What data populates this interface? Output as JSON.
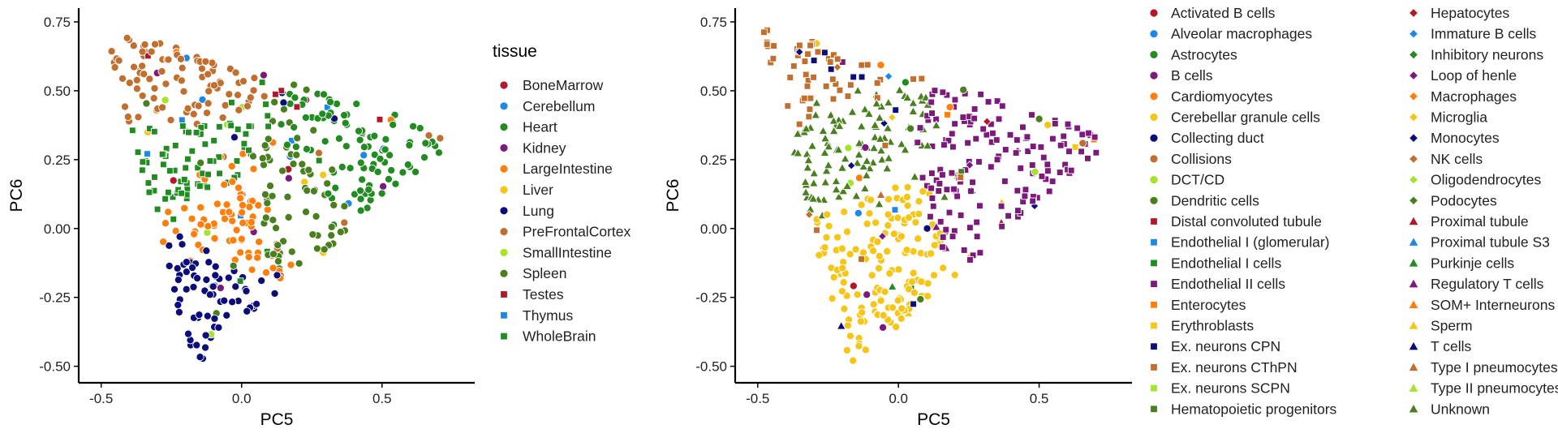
{
  "chart_data": [
    {
      "type": "scatter",
      "title": "",
      "xlabel": "PC5",
      "ylabel": "PC6",
      "xlim": [
        -0.58,
        0.83
      ],
      "ylim": [
        -0.56,
        0.8
      ],
      "x_ticks": [
        "-0.5",
        "0.0",
        "0.5"
      ],
      "x_tick_values": [
        -0.5,
        0.0,
        0.5
      ],
      "y_ticks": [
        "0.75",
        "0.50",
        "0.25",
        "0.00",
        "-0.25",
        "-0.50"
      ],
      "y_tick_values": [
        0.75,
        0.5,
        0.25,
        0.0,
        -0.25,
        -0.5
      ],
      "grid": false,
      "legend": {
        "title": "tissue",
        "placement": "right",
        "entries": [
          {
            "name": "BoneMarrow",
            "color": "#b2182b",
            "shape": "circle"
          },
          {
            "name": "Cerebellum",
            "color": "#1e88e5",
            "shape": "circle"
          },
          {
            "name": "Heart",
            "color": "#228b22",
            "shape": "circle"
          },
          {
            "name": "Kidney",
            "color": "#7b1a7b",
            "shape": "circle"
          },
          {
            "name": "LargeIntestine",
            "color": "#ff7f0e",
            "shape": "circle"
          },
          {
            "name": "Liver",
            "color": "#f5c518",
            "shape": "circle"
          },
          {
            "name": "Lung",
            "color": "#0d0d7a",
            "shape": "circle"
          },
          {
            "name": "PreFrontalCortex",
            "color": "#c06f2e",
            "shape": "circle"
          },
          {
            "name": "SmallIntestine",
            "color": "#a6e22e",
            "shape": "circle"
          },
          {
            "name": "Spleen",
            "color": "#4a7f1f",
            "shape": "circle"
          },
          {
            "name": "Testes",
            "color": "#b2182b",
            "shape": "square"
          },
          {
            "name": "Thymus",
            "color": "#1e88e5",
            "shape": "square"
          },
          {
            "name": "WholeBrain",
            "color": "#228b22",
            "shape": "square"
          }
        ]
      },
      "clusters": [
        {
          "label": "PreFrontalCortex",
          "centroid": [
            -0.35,
            0.5
          ]
        },
        {
          "label": "WholeBrain",
          "centroid": [
            -0.3,
            0.25
          ]
        },
        {
          "label": "LargeIntestine",
          "centroid": [
            -0.05,
            0.0
          ]
        },
        {
          "label": "Heart",
          "centroid": [
            0.45,
            0.18
          ]
        },
        {
          "label": "Lung",
          "centroid": [
            -0.1,
            -0.2
          ]
        },
        {
          "label": "Spleen",
          "centroid": [
            0.2,
            0.05
          ]
        }
      ],
      "outliers": [
        [
          -0.01,
          0.43
        ],
        [
          -0.14,
          0.55
        ],
        [
          -0.12,
          0.56
        ]
      ]
    },
    {
      "type": "scatter",
      "title": "",
      "xlabel": "PC5",
      "ylabel": "PC6",
      "xlim": [
        -0.58,
        0.83
      ],
      "ylim": [
        -0.56,
        0.8
      ],
      "x_ticks": [
        "-0.5",
        "0.0",
        "0.5"
      ],
      "x_tick_values": [
        -0.5,
        0.0,
        0.5
      ],
      "y_ticks": [
        "0.75",
        "0.50",
        "0.25",
        "0.00",
        "-0.25",
        "-0.50"
      ],
      "y_tick_values": [
        0.75,
        0.5,
        0.25,
        0.0,
        -0.25,
        -0.5
      ],
      "grid": false,
      "legend": {
        "title": "",
        "placement": "right",
        "columns": [
          [
            {
              "name": "Activated B cells",
              "color": "#b2182b",
              "shape": "circle"
            },
            {
              "name": "Alveolar macrophages",
              "color": "#1e88e5",
              "shape": "circle"
            },
            {
              "name": "Astrocytes",
              "color": "#228b22",
              "shape": "circle"
            },
            {
              "name": "B cells",
              "color": "#7b1a7b",
              "shape": "circle"
            },
            {
              "name": "Cardiomyocytes",
              "color": "#ff7f0e",
              "shape": "circle"
            },
            {
              "name": "Cerebellar granule cells",
              "color": "#f5c518",
              "shape": "circle"
            },
            {
              "name": "Collecting duct",
              "color": "#0d0d7a",
              "shape": "circle"
            },
            {
              "name": "Collisions",
              "color": "#c06f2e",
              "shape": "circle"
            },
            {
              "name": "DCT/CD",
              "color": "#a6e22e",
              "shape": "circle"
            },
            {
              "name": "Dendritic cells",
              "color": "#4a7f1f",
              "shape": "circle"
            },
            {
              "name": "Distal convoluted tubule",
              "color": "#b2182b",
              "shape": "square"
            },
            {
              "name": "Endothelial I (glomerular)",
              "color": "#1e88e5",
              "shape": "square"
            },
            {
              "name": "Endothelial I cells",
              "color": "#228b22",
              "shape": "square"
            },
            {
              "name": "Endothelial II cells",
              "color": "#7b1a7b",
              "shape": "square"
            },
            {
              "name": "Enterocytes",
              "color": "#ff7f0e",
              "shape": "square"
            },
            {
              "name": "Erythroblasts",
              "color": "#f5c518",
              "shape": "square"
            },
            {
              "name": "Ex. neurons CPN",
              "color": "#0d0d7a",
              "shape": "square"
            },
            {
              "name": "Ex. neurons CThPN",
              "color": "#c06f2e",
              "shape": "square"
            },
            {
              "name": "Ex. neurons SCPN",
              "color": "#a6e22e",
              "shape": "square"
            },
            {
              "name": "Hematopoietic progenitors",
              "color": "#4a7f1f",
              "shape": "square"
            }
          ],
          [
            {
              "name": "Hepatocytes",
              "color": "#b2182b",
              "shape": "diamond"
            },
            {
              "name": "Immature B cells",
              "color": "#1e88e5",
              "shape": "diamond"
            },
            {
              "name": "Inhibitory neurons",
              "color": "#228b22",
              "shape": "diamond"
            },
            {
              "name": "Loop of henle",
              "color": "#7b1a7b",
              "shape": "diamond"
            },
            {
              "name": "Macrophages",
              "color": "#ff7f0e",
              "shape": "diamond"
            },
            {
              "name": "Microglia",
              "color": "#f5c518",
              "shape": "diamond"
            },
            {
              "name": "Monocytes",
              "color": "#0d0d7a",
              "shape": "diamond"
            },
            {
              "name": "NK cells",
              "color": "#c06f2e",
              "shape": "diamond"
            },
            {
              "name": "Oligodendrocytes",
              "color": "#a6e22e",
              "shape": "diamond"
            },
            {
              "name": "Podocytes",
              "color": "#4a7f1f",
              "shape": "diamond"
            },
            {
              "name": "Proximal tubule",
              "color": "#b2182b",
              "shape": "triangle"
            },
            {
              "name": "Proximal tubule S3",
              "color": "#1e88e5",
              "shape": "triangle"
            },
            {
              "name": "Purkinje cells",
              "color": "#228b22",
              "shape": "triangle"
            },
            {
              "name": "Regulatory T cells",
              "color": "#7b1a7b",
              "shape": "triangle"
            },
            {
              "name": "SOM+ Interneurons",
              "color": "#ff7f0e",
              "shape": "triangle"
            },
            {
              "name": "Sperm",
              "color": "#f5c518",
              "shape": "triangle"
            },
            {
              "name": "T cells",
              "color": "#0d0d7a",
              "shape": "triangle"
            },
            {
              "name": "Type I pneumocytes",
              "color": "#c06f2e",
              "shape": "triangle"
            },
            {
              "name": "Type II pneumocytes",
              "color": "#a6e22e",
              "shape": "triangle"
            },
            {
              "name": "Unknown",
              "color": "#4a7f1f",
              "shape": "triangle"
            }
          ]
        ]
      },
      "clusters": [
        {
          "label": "Unknown",
          "centroid": [
            -0.25,
            0.2
          ]
        },
        {
          "label": "Endothelial II cells",
          "centroid": [
            0.4,
            0.15
          ]
        },
        {
          "label": "Cerebellar granule cells",
          "centroid": [
            -0.12,
            -0.05
          ]
        },
        {
          "label": "Ex. neurons CThPN",
          "centroid": [
            -0.4,
            0.6
          ]
        }
      ],
      "outliers": [
        [
          -0.01,
          0.43
        ],
        [
          -0.13,
          0.55
        ],
        [
          -0.16,
          0.55
        ],
        [
          -0.3,
          0.61
        ]
      ]
    }
  ]
}
